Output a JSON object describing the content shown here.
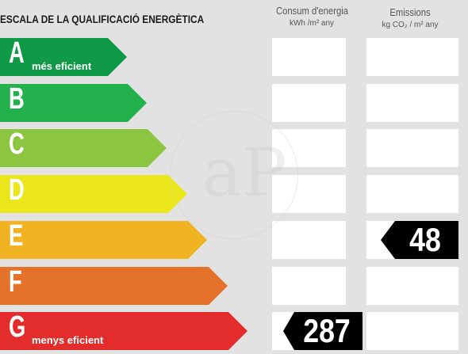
{
  "header": {
    "title": "ESCALA DE LA QUALIFICACIÓ ENERGÈTICA",
    "consum_title": "Consum d'energia",
    "consum_unit": "kWh /m² any",
    "emissions_title": "Emissions",
    "emissions_unit": "kg CO₂ / m² any"
  },
  "watermark": {
    "text": "aP"
  },
  "colors": {
    "A": "#109a47",
    "B": "#22b14c",
    "C": "#8cc640",
    "D": "#eae61b",
    "E": "#f2b322",
    "F": "#e5722a",
    "G": "#e32d2d",
    "badge": "#000000",
    "background": "#e2e2e2",
    "cell": "#ffffff"
  },
  "ratings": [
    {
      "letter": "A",
      "label": "més eficient"
    },
    {
      "letter": "B",
      "label": ""
    },
    {
      "letter": "C",
      "label": ""
    },
    {
      "letter": "D",
      "label": ""
    },
    {
      "letter": "E",
      "label": ""
    },
    {
      "letter": "F",
      "label": ""
    },
    {
      "letter": "G",
      "label": "menys eficient"
    }
  ],
  "consumption": {
    "rating": "G",
    "value": "287"
  },
  "emissions": {
    "rating": "E",
    "value": "48"
  }
}
